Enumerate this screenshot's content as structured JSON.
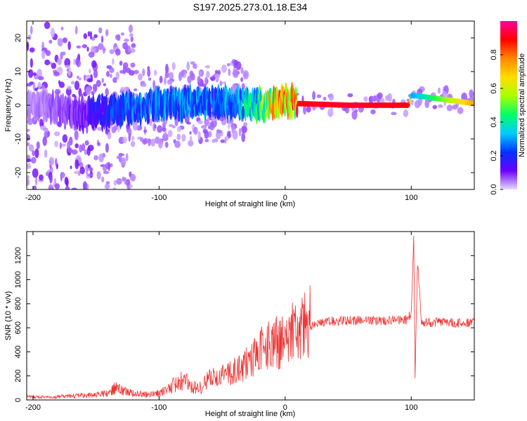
{
  "title": "S197.2025.273.01.18.E34",
  "chart_data": [
    {
      "type": "heatmap",
      "xlabel": "Height of straight line (km)",
      "ylabel": "Frequency (Hz)",
      "xlim": [
        -205,
        150
      ],
      "ylim": [
        -25,
        25
      ],
      "x_ticks": [
        -200,
        -100,
        0,
        100
      ],
      "x_tick_labels": [
        "-200",
        "-100",
        "0",
        "100"
      ],
      "y_ticks": [
        -20,
        -10,
        0,
        10,
        20
      ],
      "y_tick_labels": [
        "-20",
        "-10",
        "0",
        "10",
        "20"
      ],
      "colorbar": {
        "label": "Normalized spectral amplitude",
        "range": [
          0,
          1
        ],
        "ticks": [
          0,
          0.2,
          0.4,
          0.6,
          0.8
        ],
        "tick_labels": [
          "0.0",
          "0.2",
          "0.4",
          "0.6",
          "0.8"
        ],
        "colors": [
          "#e8d9ff",
          "#6a00ff",
          "#0033ff",
          "#00ccff",
          "#00ff66",
          "#aaff00",
          "#ffdd00",
          "#ff8800",
          "#ff0000",
          "#ff0099"
        ]
      },
      "ridge": [
        {
          "x": -200,
          "freq": 0,
          "amplitude": 0.05
        },
        {
          "x": -160,
          "freq": -2.5,
          "amplitude": 0.12
        },
        {
          "x": -140,
          "freq": -2,
          "amplitude": 0.25
        },
        {
          "x": -120,
          "freq": -1,
          "amplitude": 0.3
        },
        {
          "x": -100,
          "freq": 0,
          "amplitude": 0.3
        },
        {
          "x": -80,
          "freq": 0.5,
          "amplitude": 0.32
        },
        {
          "x": -60,
          "freq": 1,
          "amplitude": 0.3
        },
        {
          "x": -40,
          "freq": 1,
          "amplitude": 0.35
        },
        {
          "x": -20,
          "freq": 0,
          "amplitude": 0.5
        },
        {
          "x": -10,
          "freq": 0.5,
          "amplitude": 0.8
        },
        {
          "x": 0,
          "freq": 1.5,
          "amplitude": 0.85
        },
        {
          "x": 10,
          "freq": 0.5,
          "amplitude": 0.9
        },
        {
          "x": 50,
          "freq": 0,
          "amplitude": 0.92
        },
        {
          "x": 98,
          "freq": 0,
          "amplitude": 0.9
        },
        {
          "x": 100,
          "freq": 3,
          "amplitude": 0.3
        },
        {
          "x": 150,
          "freq": 0.5,
          "amplitude": 0.75
        }
      ]
    },
    {
      "type": "line",
      "xlabel": "Height of straight line (km)",
      "ylabel": "SNR (10 * v/v)",
      "xlim": [
        -205,
        150
      ],
      "ylim": [
        0,
        1400
      ],
      "x_ticks": [
        -200,
        -100,
        0,
        100
      ],
      "x_tick_labels": [
        "-200",
        "-100",
        "0",
        "100"
      ],
      "y_ticks": [
        0,
        200,
        400,
        600,
        800,
        1000,
        1200
      ],
      "y_tick_labels": [
        "0",
        "200",
        "400",
        "600",
        "800",
        "1000",
        "1200"
      ],
      "line_color": "#ee3333",
      "series": [
        {
          "x": [
            -205,
            -190,
            -170,
            -150,
            -140,
            -135,
            -125,
            -110,
            -100,
            -95,
            -90,
            -85,
            -80,
            -75,
            -70,
            -65,
            -60,
            -55,
            -50,
            -45,
            -40,
            -35,
            -30,
            -25,
            -20,
            -15,
            -10,
            -5,
            0,
            5,
            10,
            15,
            20,
            25,
            30,
            35,
            40,
            50,
            60,
            70,
            80,
            90,
            97,
            100,
            102,
            103,
            105,
            108,
            115,
            125,
            135,
            150
          ],
          "y": [
            30,
            20,
            30,
            40,
            50,
            90,
            60,
            40,
            50,
            80,
            100,
            140,
            150,
            110,
            90,
            110,
            170,
            180,
            190,
            200,
            230,
            260,
            290,
            350,
            410,
            420,
            440,
            460,
            480,
            520,
            560,
            590,
            620,
            640,
            650,
            650,
            660,
            660,
            660,
            660,
            660,
            660,
            670,
            720,
            1380,
            180,
            1150,
            640,
            640,
            650,
            640,
            650
          ]
        }
      ]
    }
  ]
}
